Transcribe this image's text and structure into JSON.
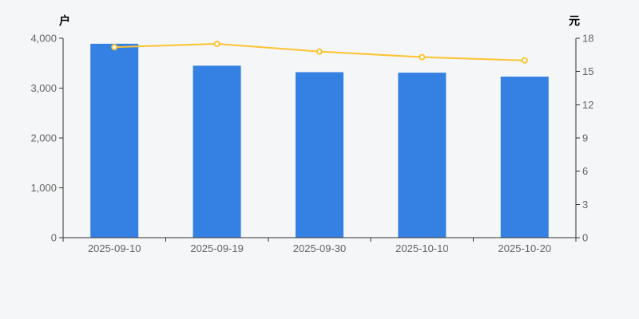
{
  "page": {
    "background": "#f5f6f7"
  },
  "chart_data": {
    "type": "bar",
    "title": "",
    "categories": [
      "2025-09-10",
      "2025-09-19",
      "2025-09-30",
      "2025-10-10",
      "2025-10-20"
    ],
    "series": [
      {
        "id": "holders-bars",
        "type": "bar",
        "axis": "left",
        "color": "#3580e3",
        "values": [
          3890,
          3450,
          3320,
          3310,
          3230
        ]
      },
      {
        "id": "per-holder-line",
        "type": "line",
        "axis": "right",
        "color": "#fdc331",
        "marker_fill": "#ffffff",
        "values": [
          17.2,
          17.5,
          16.8,
          16.3,
          16.0
        ]
      }
    ],
    "left_axis": {
      "name": "户",
      "min": 0,
      "max": 4000,
      "tick_labels": [
        "0",
        "1,000",
        "2,000",
        "3,000",
        "4,000"
      ]
    },
    "right_axis": {
      "name": "元",
      "min": 0,
      "max": 18,
      "tick_labels": [
        "0",
        "3",
        "6",
        "9",
        "12",
        "15",
        "18"
      ]
    },
    "x_axis": {
      "tick_labels": [
        "2025-09-10",
        "2025-09-19",
        "2025-09-30",
        "2025-10-10",
        "2025-10-20"
      ]
    },
    "grid": false,
    "legend_position": "none",
    "styles": {
      "axis_color": "#333333",
      "label_color": "#646464",
      "axis_name_color": "#4d4d4d"
    }
  }
}
